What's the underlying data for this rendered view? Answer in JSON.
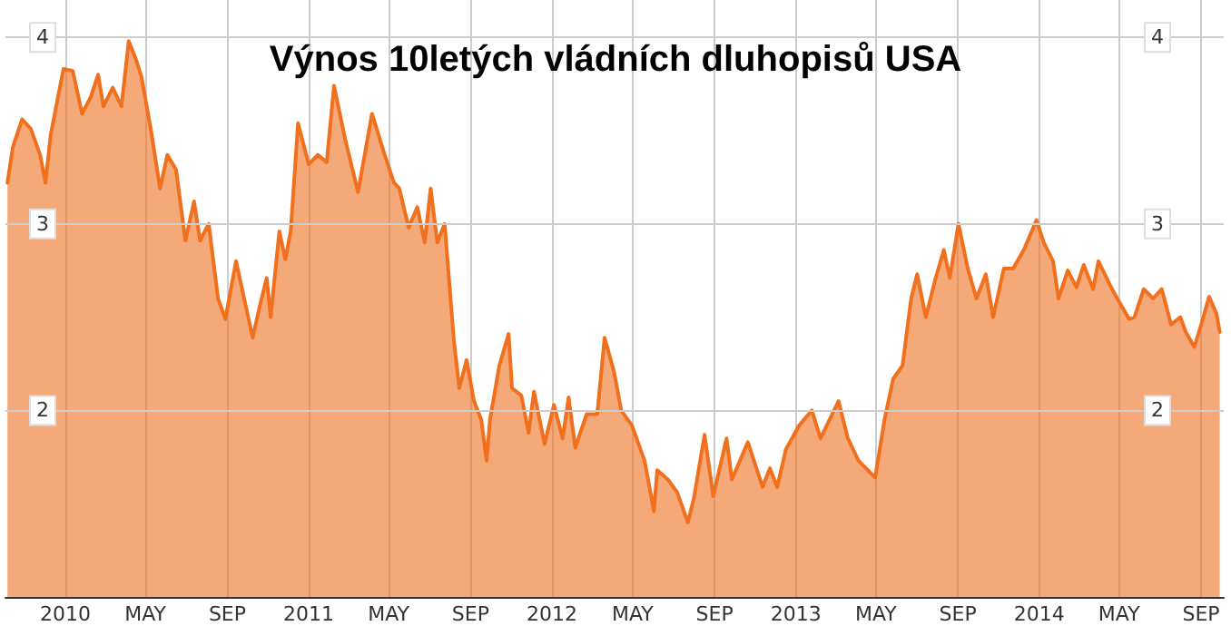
{
  "chart_data": {
    "type": "area",
    "title": "Výnos 10letých vládních dluhopisů USA",
    "x": [
      "2009-10-06",
      "2009-10-14",
      "2009-10-28",
      "2009-11-10",
      "2009-11-24",
      "2009-12-02",
      "2009-12-10",
      "2009-12-29",
      "2010-01-12",
      "2010-01-26",
      "2010-02-08",
      "2010-02-19",
      "2010-02-27",
      "2010-03-13",
      "2010-03-26",
      "2010-04-06",
      "2010-04-17",
      "2010-04-25",
      "2010-05-09",
      "2010-05-23",
      "2010-06-03",
      "2010-06-16",
      "2010-06-30",
      "2010-07-13",
      "2010-07-22",
      "2010-08-04",
      "2010-08-18",
      "2010-08-29",
      "2010-09-14",
      "2010-09-28",
      "2010-10-09",
      "2010-10-19",
      "2010-10-30",
      "2010-11-05",
      "2010-11-18",
      "2010-11-27",
      "2010-12-05",
      "2010-12-16",
      "2011-01-01",
      "2011-01-15",
      "2011-01-28",
      "2011-02-08",
      "2011-02-25",
      "2011-03-16",
      "2011-04-06",
      "2011-04-25",
      "2011-05-09",
      "2011-05-17",
      "2011-05-31",
      "2011-06-13",
      "2011-06-24",
      "2011-07-03",
      "2011-07-13",
      "2011-07-24",
      "2011-08-07",
      "2011-08-15",
      "2011-08-26",
      "2011-09-06",
      "2011-09-17",
      "2011-09-25",
      "2011-09-30",
      "2011-10-14",
      "2011-10-28",
      "2011-11-02",
      "2011-11-16",
      "2011-11-27",
      "2011-12-05",
      "2011-12-21",
      "2012-01-04",
      "2012-01-17",
      "2012-01-26",
      "2012-02-05",
      "2012-02-22",
      "2012-03-09",
      "2012-03-20",
      "2012-04-03",
      "2012-04-14",
      "2012-04-30",
      "2012-05-19",
      "2012-06-02",
      "2012-06-07",
      "2012-06-23",
      "2012-07-07",
      "2012-07-23",
      "2012-08-01",
      "2012-08-17",
      "2012-08-30",
      "2012-09-19",
      "2012-09-27",
      "2012-10-21",
      "2012-11-12",
      "2012-11-23",
      "2012-12-04",
      "2012-12-17",
      "2013-01-06",
      "2013-01-25",
      "2013-02-07",
      "2013-03-06",
      "2013-03-20",
      "2013-04-05",
      "2013-04-30",
      "2013-05-14",
      "2013-05-27",
      "2013-06-10",
      "2013-06-23",
      "2013-07-02",
      "2013-07-15",
      "2013-07-29",
      "2013-08-11",
      "2013-08-20",
      "2013-09-02",
      "2013-09-16",
      "2013-09-29",
      "2013-10-13",
      "2013-10-24",
      "2013-11-09",
      "2013-11-23",
      "2013-12-09",
      "2013-12-28",
      "2014-01-08",
      "2014-01-22",
      "2014-01-30",
      "2014-02-13",
      "2014-02-26",
      "2014-03-09",
      "2014-03-23",
      "2014-03-31",
      "2014-04-19",
      "2014-05-03",
      "2014-05-16",
      "2014-05-24",
      "2014-06-07",
      "2014-06-21",
      "2014-07-04",
      "2014-07-18",
      "2014-08-01",
      "2014-08-09",
      "2014-08-22",
      "2014-09-02",
      "2014-09-13",
      "2014-09-24",
      "2014-09-29"
    ],
    "series": [
      {
        "color": "#f0701e",
        "values": [
          3.22,
          3.41,
          3.56,
          3.51,
          3.37,
          3.22,
          3.48,
          3.83,
          3.82,
          3.59,
          3.68,
          3.8,
          3.63,
          3.73,
          3.63,
          3.98,
          3.88,
          3.79,
          3.51,
          3.19,
          3.37,
          3.29,
          2.91,
          3.12,
          2.91,
          3.0,
          2.6,
          2.49,
          2.8,
          2.57,
          2.39,
          2.55,
          2.71,
          2.5,
          2.96,
          2.81,
          2.96,
          3.54,
          3.32,
          3.37,
          3.33,
          3.74,
          3.45,
          3.17,
          3.59,
          3.37,
          3.22,
          3.19,
          2.98,
          3.09,
          2.9,
          3.19,
          2.9,
          3.0,
          2.37,
          2.12,
          2.27,
          2.05,
          1.95,
          1.73,
          1.95,
          2.24,
          2.41,
          2.12,
          2.08,
          1.88,
          2.1,
          1.82,
          2.03,
          1.85,
          2.07,
          1.8,
          1.98,
          1.98,
          2.39,
          2.21,
          2.0,
          1.92,
          1.73,
          1.46,
          1.68,
          1.63,
          1.56,
          1.4,
          1.53,
          1.87,
          1.54,
          1.85,
          1.63,
          1.83,
          1.59,
          1.69,
          1.59,
          1.79,
          1.92,
          2.0,
          1.85,
          2.05,
          1.85,
          1.73,
          1.64,
          1.95,
          2.17,
          2.24,
          2.6,
          2.73,
          2.5,
          2.7,
          2.86,
          2.71,
          3.0,
          2.76,
          2.6,
          2.73,
          2.5,
          2.76,
          2.76,
          2.86,
          3.02,
          2.9,
          2.8,
          2.6,
          2.75,
          2.66,
          2.78,
          2.65,
          2.8,
          2.66,
          2.57,
          2.49,
          2.5,
          2.65,
          2.6,
          2.65,
          2.46,
          2.5,
          2.42,
          2.34,
          2.47,
          2.61,
          2.52,
          2.42
        ]
      }
    ],
    "xlim": [
      "2009-10-03",
      "2014-10-05"
    ],
    "xticks": [
      {
        "value": "2010-01-01",
        "label": "2010"
      },
      {
        "value": "2010-05-01",
        "label": "MAY"
      },
      {
        "value": "2010-09-01",
        "label": "SEP"
      },
      {
        "value": "2011-01-01",
        "label": "2011"
      },
      {
        "value": "2011-05-01",
        "label": "MAY"
      },
      {
        "value": "2011-09-01",
        "label": "SEP"
      },
      {
        "value": "2012-01-01",
        "label": "2012"
      },
      {
        "value": "2012-05-01",
        "label": "MAY"
      },
      {
        "value": "2012-09-01",
        "label": "SEP"
      },
      {
        "value": "2013-01-01",
        "label": "2013"
      },
      {
        "value": "2013-05-01",
        "label": "MAY"
      },
      {
        "value": "2013-09-01",
        "label": "SEP"
      },
      {
        "value": "2014-01-01",
        "label": "2014"
      },
      {
        "value": "2014-05-01",
        "label": "MAY"
      },
      {
        "value": "2014-09-01",
        "label": "SEP"
      }
    ],
    "ylim": [
      1,
      4.2
    ],
    "yticks": [
      2,
      3,
      4
    ],
    "y2lim": [
      1,
      4.2
    ],
    "y2ticks": [
      2,
      3,
      4
    ],
    "grid": true,
    "marker": "none",
    "line_style": "solid"
  }
}
